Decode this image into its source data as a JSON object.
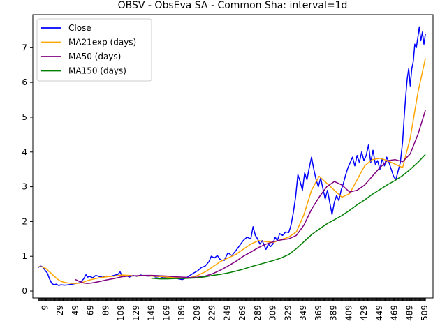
{
  "chart_data": {
    "type": "line",
    "title": "OBSV - ObsEva SA - Common Sha: interval=1d",
    "xlabel": "",
    "ylabel": "",
    "xlim": [
      -7,
      520
    ],
    "ylim": [
      -0.2,
      7.95
    ],
    "yticks": [
      0,
      1,
      2,
      3,
      4,
      5,
      6,
      7
    ],
    "xticks": [
      9,
      29,
      49,
      69,
      89,
      109,
      129,
      149,
      169,
      189,
      209,
      229,
      249,
      269,
      289,
      309,
      329,
      349,
      369,
      389,
      409,
      429,
      449,
      469,
      489,
      509
    ],
    "legend_position": "upper-left",
    "series": [
      {
        "name": "Close",
        "color": "#0000ff",
        "x": [
          0,
          3,
          6,
          9,
          12,
          15,
          18,
          21,
          24,
          27,
          30,
          35,
          40,
          45,
          50,
          55,
          60,
          63,
          65,
          68,
          72,
          76,
          80,
          85,
          90,
          95,
          100,
          105,
          108,
          110,
          113,
          117,
          120,
          125,
          130,
          135,
          140,
          145,
          150,
          155,
          160,
          165,
          170,
          175,
          180,
          185,
          190,
          195,
          200,
          205,
          210,
          215,
          220,
          225,
          228,
          232,
          236,
          240,
          245,
          250,
          255,
          260,
          265,
          270,
          275,
          280,
          283,
          286,
          289,
          292,
          295,
          298,
          300,
          303,
          306,
          309,
          312,
          315,
          318,
          322,
          326,
          330,
          333,
          336,
          339,
          342,
          345,
          348,
          351,
          354,
          357,
          360,
          363,
          366,
          369,
          372,
          375,
          378,
          381,
          384,
          387,
          390,
          393,
          396,
          399,
          402,
          405,
          408,
          411,
          414,
          417,
          420,
          423,
          426,
          429,
          432,
          435,
          438,
          441,
          444,
          447,
          450,
          453,
          456,
          459,
          462,
          465,
          468,
          471,
          474,
          477,
          480,
          482,
          484,
          486,
          488,
          490,
          492,
          494,
          496,
          498,
          500,
          502,
          504,
          506,
          508,
          510
        ],
        "y": [
          0.68,
          0.72,
          0.7,
          0.6,
          0.52,
          0.35,
          0.22,
          0.18,
          0.2,
          0.16,
          0.18,
          0.17,
          0.18,
          0.2,
          0.22,
          0.24,
          0.35,
          0.47,
          0.4,
          0.42,
          0.38,
          0.45,
          0.42,
          0.4,
          0.43,
          0.42,
          0.45,
          0.48,
          0.55,
          0.45,
          0.42,
          0.44,
          0.4,
          0.45,
          0.42,
          0.46,
          0.44,
          0.43,
          0.44,
          0.4,
          0.42,
          0.38,
          0.39,
          0.36,
          0.38,
          0.35,
          0.33,
          0.38,
          0.45,
          0.52,
          0.58,
          0.68,
          0.72,
          0.85,
          1.0,
          0.95,
          1.02,
          0.9,
          0.88,
          1.1,
          1.02,
          1.15,
          1.3,
          1.45,
          1.55,
          1.5,
          1.85,
          1.6,
          1.5,
          1.35,
          1.45,
          1.3,
          1.2,
          1.35,
          1.28,
          1.35,
          1.55,
          1.45,
          1.65,
          1.6,
          1.7,
          1.68,
          1.9,
          2.25,
          2.7,
          3.35,
          3.15,
          2.9,
          3.4,
          3.2,
          3.55,
          3.85,
          3.5,
          3.2,
          3.0,
          3.25,
          2.95,
          2.65,
          2.9,
          2.55,
          2.2,
          2.55,
          2.75,
          2.6,
          2.9,
          3.1,
          3.35,
          3.55,
          3.7,
          3.85,
          3.6,
          3.9,
          3.7,
          4.0,
          3.75,
          3.9,
          4.2,
          3.7,
          4.05,
          3.65,
          3.75,
          3.5,
          3.8,
          3.6,
          3.85,
          3.7,
          3.5,
          3.3,
          3.2,
          3.45,
          3.7,
          4.3,
          5.0,
          5.6,
          6.1,
          6.4,
          5.9,
          6.4,
          6.6,
          7.1,
          7.0,
          7.3,
          7.6,
          7.2,
          7.45,
          7.1,
          7.4
        ]
      },
      {
        "name": "MA21exp (days)",
        "color": "#ffa500",
        "x": [
          0,
          5,
          10,
          15,
          20,
          25,
          30,
          35,
          40,
          45,
          50,
          55,
          60,
          65,
          70,
          80,
          90,
          100,
          110,
          120,
          130,
          140,
          150,
          160,
          170,
          180,
          190,
          200,
          210,
          220,
          230,
          240,
          250,
          260,
          270,
          280,
          290,
          300,
          310,
          320,
          330,
          340,
          350,
          360,
          370,
          380,
          390,
          400,
          410,
          420,
          430,
          440,
          450,
          460,
          470,
          480,
          490,
          500,
          510
        ],
        "y": [
          0.7,
          0.7,
          0.65,
          0.55,
          0.45,
          0.35,
          0.28,
          0.25,
          0.23,
          0.22,
          0.22,
          0.23,
          0.26,
          0.3,
          0.33,
          0.38,
          0.41,
          0.43,
          0.46,
          0.45,
          0.43,
          0.44,
          0.43,
          0.42,
          0.4,
          0.38,
          0.37,
          0.38,
          0.45,
          0.55,
          0.7,
          0.85,
          0.95,
          1.05,
          1.2,
          1.35,
          1.45,
          1.42,
          1.4,
          1.48,
          1.55,
          1.7,
          2.2,
          2.9,
          3.3,
          3.1,
          2.9,
          2.7,
          2.8,
          3.2,
          3.6,
          3.78,
          3.82,
          3.75,
          3.65,
          3.55,
          4.4,
          5.7,
          6.7
        ]
      },
      {
        "name": "MA50 (days)",
        "color": "#800080",
        "x": [
          49,
          55,
          60,
          65,
          70,
          80,
          90,
          100,
          110,
          120,
          130,
          140,
          150,
          160,
          170,
          180,
          190,
          200,
          210,
          220,
          230,
          240,
          250,
          260,
          270,
          280,
          290,
          300,
          310,
          320,
          330,
          340,
          350,
          360,
          370,
          380,
          390,
          400,
          410,
          420,
          430,
          440,
          450,
          460,
          470,
          480,
          490,
          500,
          510
        ],
        "y": [
          0.33,
          0.27,
          0.23,
          0.22,
          0.23,
          0.27,
          0.32,
          0.36,
          0.41,
          0.43,
          0.44,
          0.45,
          0.45,
          0.44,
          0.43,
          0.41,
          0.4,
          0.39,
          0.4,
          0.43,
          0.5,
          0.6,
          0.72,
          0.85,
          1.0,
          1.12,
          1.25,
          1.35,
          1.42,
          1.47,
          1.5,
          1.6,
          1.9,
          2.35,
          2.7,
          3.0,
          3.15,
          3.05,
          2.85,
          2.9,
          3.05,
          3.3,
          3.55,
          3.75,
          3.78,
          3.72,
          3.95,
          4.5,
          5.2
        ]
      },
      {
        "name": "MA150 (days)",
        "color": "#008000",
        "x": [
          149,
          160,
          170,
          180,
          190,
          200,
          210,
          220,
          230,
          240,
          250,
          260,
          270,
          280,
          290,
          300,
          310,
          320,
          330,
          340,
          350,
          360,
          370,
          380,
          390,
          400,
          410,
          420,
          430,
          440,
          450,
          460,
          470,
          480,
          490,
          500,
          510
        ],
        "y": [
          0.37,
          0.35,
          0.35,
          0.36,
          0.36,
          0.37,
          0.38,
          0.41,
          0.45,
          0.48,
          0.52,
          0.57,
          0.63,
          0.7,
          0.76,
          0.82,
          0.88,
          0.95,
          1.05,
          1.22,
          1.42,
          1.62,
          1.78,
          1.93,
          2.05,
          2.17,
          2.32,
          2.48,
          2.62,
          2.78,
          2.92,
          3.06,
          3.18,
          3.32,
          3.5,
          3.7,
          3.93
        ]
      }
    ]
  }
}
